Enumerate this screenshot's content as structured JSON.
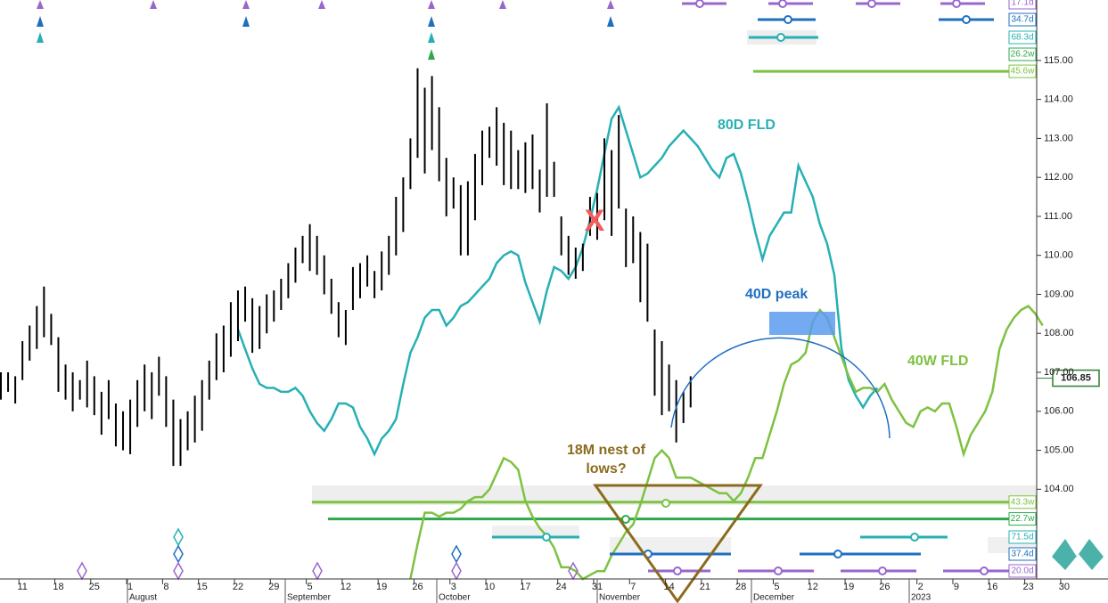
{
  "chart_data": {
    "type": "ohlc",
    "x_labels": [
      "11",
      "18",
      "25",
      "1",
      "8",
      "15",
      "22",
      "29",
      "5",
      "12",
      "19",
      "26",
      "3",
      "10",
      "17",
      "24",
      "31",
      "7",
      "14",
      "21",
      "28",
      "5",
      "12",
      "19",
      "26",
      "2",
      "9",
      "16",
      "23",
      "30"
    ],
    "months": [
      "August",
      "September",
      "October",
      "November",
      "December",
      "2023"
    ],
    "ylim": [
      101.7,
      116.55
    ],
    "yticks": [
      {
        "value": 104,
        "label": "104.00"
      },
      {
        "value": 105,
        "label": "105.00"
      },
      {
        "value": 106,
        "label": "106.00"
      },
      {
        "value": 107,
        "label": "107.00"
      },
      {
        "value": 108,
        "label": "108.00"
      },
      {
        "value": 109,
        "label": "109.00"
      },
      {
        "value": 110,
        "label": "110.00"
      },
      {
        "value": 111,
        "label": "111.00"
      },
      {
        "value": 112,
        "label": "112.00"
      },
      {
        "value": 113,
        "label": "113.00"
      },
      {
        "value": 114,
        "label": "114.00"
      },
      {
        "value": 115,
        "label": "115.00"
      }
    ],
    "bars": {
      "color": "#000000",
      "high": [
        107.0,
        107.0,
        106.9,
        107.8,
        108.2,
        108.7,
        109.2,
        108.5,
        107.9,
        107.2,
        107.0,
        106.8,
        107.3,
        106.9,
        106.5,
        106.8,
        106.2,
        106.0,
        106.3,
        106.8,
        107.2,
        107.0,
        107.4,
        106.9,
        106.3,
        105.8,
        106.0,
        106.4,
        106.8,
        107.3,
        108.0,
        108.2,
        108.8,
        109.1,
        109.2,
        108.9,
        108.7,
        109.0,
        109.1,
        109.4,
        109.8,
        110.2,
        110.5,
        110.8,
        110.5,
        110.0,
        109.4,
        108.8,
        108.6,
        109.7,
        109.8,
        110.0,
        109.6,
        110.1,
        110.5,
        111.5,
        112.0,
        113.0,
        114.8,
        114.3,
        114.6,
        113.8,
        112.5,
        112.0,
        111.8,
        111.9,
        112.6,
        113.2,
        113.3,
        113.8,
        113.4,
        113.2,
        112.7,
        112.9,
        113.1,
        112.2,
        113.9,
        112.4,
        111.0,
        110.5,
        110.2,
        110.3,
        111.5,
        111.6,
        113.0,
        112.7,
        113.6,
        111.2,
        111.0,
        110.6,
        110.3,
        108.1,
        107.8,
        107.2,
        106.8,
        106.5,
        106.9
      ],
      "low": [
        106.3,
        106.5,
        106.2,
        106.8,
        107.3,
        107.6,
        107.9,
        107.7,
        106.5,
        106.3,
        106.0,
        106.3,
        106.1,
        105.9,
        105.4,
        105.8,
        105.1,
        105.0,
        104.9,
        105.6,
        106.0,
        105.8,
        106.4,
        105.6,
        104.6,
        104.6,
        105.0,
        105.2,
        105.5,
        106.3,
        106.8,
        107.0,
        107.4,
        107.8,
        108.3,
        107.5,
        107.6,
        108.0,
        108.3,
        108.6,
        108.9,
        109.3,
        109.8,
        109.6,
        109.5,
        109.0,
        108.5,
        107.9,
        107.7,
        108.6,
        108.9,
        109.2,
        108.9,
        109.1,
        109.5,
        110.0,
        110.6,
        111.7,
        112.5,
        112.1,
        112.7,
        111.9,
        111.0,
        111.2,
        110.0,
        110.0,
        110.9,
        111.8,
        112.5,
        112.3,
        111.8,
        111.7,
        111.7,
        111.6,
        111.7,
        111.1,
        111.5,
        111.5,
        110.0,
        109.5,
        109.4,
        109.6,
        110.5,
        110.4,
        110.9,
        110.5,
        111.2,
        109.7,
        109.8,
        108.8,
        108.3,
        106.4,
        105.9,
        106.0,
        105.2,
        105.7,
        106.1
      ]
    },
    "series": [
      {
        "name": "80D FLD",
        "color": "#27b0b4",
        "values": [
          null,
          null,
          null,
          null,
          null,
          null,
          null,
          null,
          null,
          null,
          null,
          null,
          null,
          null,
          null,
          null,
          null,
          null,
          null,
          null,
          null,
          null,
          null,
          null,
          null,
          null,
          null,
          null,
          null,
          null,
          null,
          null,
          null,
          108.1,
          107.6,
          107.1,
          106.7,
          106.6,
          106.6,
          106.5,
          106.5,
          106.6,
          106.4,
          106.0,
          105.7,
          105.5,
          105.8,
          106.2,
          106.2,
          106.1,
          105.6,
          105.3,
          104.9,
          105.3,
          105.5,
          105.8,
          106.7,
          107.5,
          107.9,
          108.4,
          108.6,
          108.6,
          108.2,
          108.4,
          108.7,
          108.8,
          109.0,
          109.2,
          109.4,
          109.8,
          110.0,
          110.1,
          110.0,
          109.3,
          108.8,
          108.3,
          109.1,
          109.7,
          109.6,
          109.4,
          109.7,
          110.2,
          110.9,
          111.7,
          112.6,
          113.5,
          113.8,
          113.2,
          112.6,
          112.0,
          112.1,
          112.3,
          112.5,
          112.8,
          113.0,
          113.2,
          113.0,
          112.8,
          112.5,
          112.2,
          112.0,
          112.5,
          112.6,
          112.1,
          111.4,
          110.6,
          109.9,
          110.5,
          110.8,
          111.1,
          111.1,
          112.3,
          111.9,
          111.5,
          110.8,
          110.3,
          109.5,
          107.6,
          106.8,
          106.4,
          106.1,
          106.4,
          106.6
        ]
      },
      {
        "name": "40W FLD",
        "color": "#7dc241",
        "values": [
          null,
          null,
          null,
          null,
          null,
          null,
          null,
          null,
          null,
          null,
          null,
          null,
          null,
          null,
          null,
          null,
          null,
          null,
          null,
          null,
          null,
          null,
          null,
          null,
          null,
          null,
          null,
          null,
          null,
          null,
          null,
          null,
          null,
          null,
          null,
          null,
          null,
          null,
          null,
          null,
          null,
          null,
          null,
          null,
          null,
          null,
          null,
          null,
          null,
          null,
          null,
          null,
          null,
          null,
          null,
          null,
          null,
          101.7,
          102.6,
          103.4,
          103.4,
          103.3,
          103.4,
          103.4,
          103.5,
          103.7,
          103.8,
          103.8,
          104.0,
          104.4,
          104.8,
          104.7,
          104.5,
          103.7,
          103.3,
          103.0,
          102.8,
          102.5,
          102.0,
          102.0,
          101.9,
          101.7,
          101.8,
          101.9,
          101.9,
          102.3,
          102.6,
          102.9,
          103.1,
          103.6,
          104.2,
          104.8,
          105.0,
          104.8,
          104.3,
          104.3,
          104.3,
          104.2,
          104.1,
          104.0,
          103.9,
          103.9,
          103.7,
          103.9,
          104.3,
          104.8,
          104.8,
          105.4,
          106.0,
          106.7,
          107.2,
          107.3,
          107.5,
          108.3,
          108.6,
          108.4,
          107.9,
          107.4,
          106.9,
          106.5,
          106.6,
          106.6,
          106.5,
          106.7,
          106.3,
          106.0,
          105.7,
          105.6,
          106.0,
          106.1,
          106.0,
          106.2,
          106.2,
          105.6,
          104.9,
          105.4,
          105.7,
          106.0,
          106.5,
          107.6,
          108.1,
          108.4,
          108.6,
          108.7,
          108.5,
          108.2
        ]
      }
    ],
    "annotations": [
      "40D peak",
      "18M nest of",
      "lows?",
      "X"
    ],
    "levels": [
      {
        "label": "45.6w",
        "value": 114.72,
        "color": "#7dc241"
      },
      {
        "label": "43.3w",
        "value": 103.67,
        "color": "#7dc241"
      },
      {
        "label": "22.7w",
        "value": 103.24,
        "color": "#2ea84a"
      }
    ],
    "cycle_tags": [
      {
        "label": "17.1d",
        "color": "#9966cc"
      },
      {
        "label": "34.7d",
        "color": "#1f6fc0"
      },
      {
        "label": "68.3d",
        "color": "#27b0b4"
      },
      {
        "label": "26.2w",
        "color": "#2ea84a"
      },
      {
        "label": "71.5d",
        "color": "#27b0b4"
      },
      {
        "label": "37.4d",
        "color": "#1f6fc0"
      },
      {
        "label": "20.0d",
        "color": "#9966cc"
      }
    ],
    "last_price": 106.85
  }
}
